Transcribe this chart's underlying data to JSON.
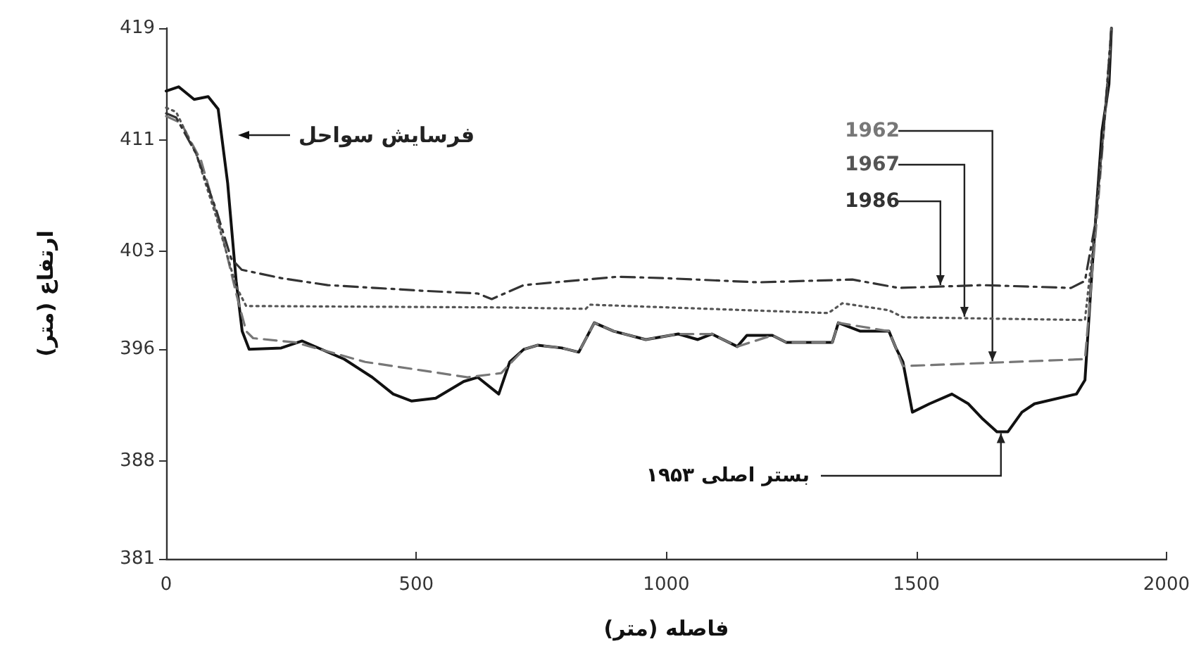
{
  "chart_data": {
    "type": "line",
    "xlabel": "فاصله (متر)",
    "ylabel": "ارتفاع (متر)",
    "xlim": [
      0,
      2000
    ],
    "xticks": [
      0,
      500,
      1000,
      1500,
      2000
    ],
    "ylim": [
      381,
      419
    ],
    "yticks": [
      381,
      388,
      396,
      403,
      411,
      419
    ],
    "grid": false,
    "legend": false,
    "marker": "none",
    "annotations": [
      "فرسایش سواحل"
    ],
    "series": [
      {
        "name": "بستر اصلی ۱۹۵۳",
        "color": "#111111",
        "line_style": "solid",
        "x": [
          0,
          25,
          56,
          84,
          104,
          123,
          140,
          152,
          166,
          230,
          272,
          356,
          412,
          454,
          491,
          539,
          595,
          623,
          665,
          687,
          715,
          743,
          791,
          825,
          856,
          895,
          959,
          1024,
          1063,
          1091,
          1142,
          1161,
          1212,
          1240,
          1332,
          1344,
          1388,
          1445,
          1459,
          1473,
          1492,
          1526,
          1571,
          1604,
          1633,
          1661,
          1683,
          1711,
          1736,
          1820,
          1837,
          1851,
          1871,
          1885,
          1890
        ],
        "values": [
          414.5,
          414.8,
          413.9,
          414.1,
          413.2,
          407.9,
          400.9,
          397.3,
          396.0,
          396.1,
          396.6,
          395.3,
          394.0,
          392.8,
          392.3,
          392.5,
          393.7,
          394.0,
          392.8,
          395.1,
          396.0,
          396.3,
          396.1,
          395.8,
          397.9,
          397.3,
          396.7,
          397.1,
          396.7,
          397.1,
          396.2,
          397.0,
          397.0,
          396.5,
          396.5,
          397.9,
          397.3,
          397.3,
          396.1,
          395.1,
          391.5,
          392.1,
          392.8,
          392.1,
          391.0,
          390.1,
          390.1,
          391.5,
          392.1,
          392.8,
          393.8,
          401.6,
          411.6,
          415.0,
          419
        ]
      },
      {
        "name": "1962",
        "color": "#777777",
        "line_style": "dashed",
        "x": [
          0,
          30,
          70,
          110,
          140,
          160,
          174,
          258,
          398,
          510,
          603,
          670,
          715,
          743,
          791,
          825,
          856,
          895,
          959,
          1024,
          1091,
          1142,
          1212,
          1240,
          1332,
          1344,
          1445,
          1459,
          1473,
          1837,
          1860,
          1880,
          1890
        ],
        "values": [
          412.7,
          412.2,
          409.5,
          404.5,
          400.0,
          397.3,
          396.8,
          396.5,
          395.1,
          394.5,
          394.0,
          394.3,
          396.0,
          396.3,
          396.1,
          395.8,
          397.9,
          397.3,
          396.7,
          397.1,
          397.1,
          396.2,
          397.0,
          396.5,
          396.5,
          397.9,
          397.3,
          396.1,
          394.8,
          395.3,
          405.0,
          414.0,
          419
        ]
      },
      {
        "name": "1967",
        "color": "#555555",
        "line_style": "dotted",
        "x": [
          0,
          20,
          60,
          100,
          140,
          160,
          182,
          679,
          839,
          847,
          1324,
          1352,
          1445,
          1473,
          1837,
          1855,
          1875,
          1890
        ],
        "values": [
          413.3,
          413.0,
          410.0,
          405.5,
          400.5,
          399.1,
          399.1,
          399.0,
          398.9,
          399.2,
          398.6,
          399.3,
          398.8,
          398.3,
          398.1,
          404.0,
          412.0,
          419
        ]
      },
      {
        "name": "1986",
        "color": "#333333",
        "line_style": "dashdot",
        "x": [
          0,
          20,
          60,
          100,
          130,
          151,
          230,
          323,
          418,
          510,
          623,
          651,
          715,
          903,
          996,
          1184,
          1372,
          1464,
          1633,
          1809,
          1837,
          1857,
          1875,
          1890
        ],
        "values": [
          412.9,
          412.6,
          410.0,
          406.0,
          402.5,
          401.7,
          401.1,
          400.6,
          400.4,
          400.2,
          400.0,
          399.6,
          400.6,
          401.2,
          401.1,
          400.8,
          401.0,
          400.4,
          400.6,
          400.4,
          400.9,
          404.9,
          412.0,
          419
        ]
      }
    ]
  }
}
